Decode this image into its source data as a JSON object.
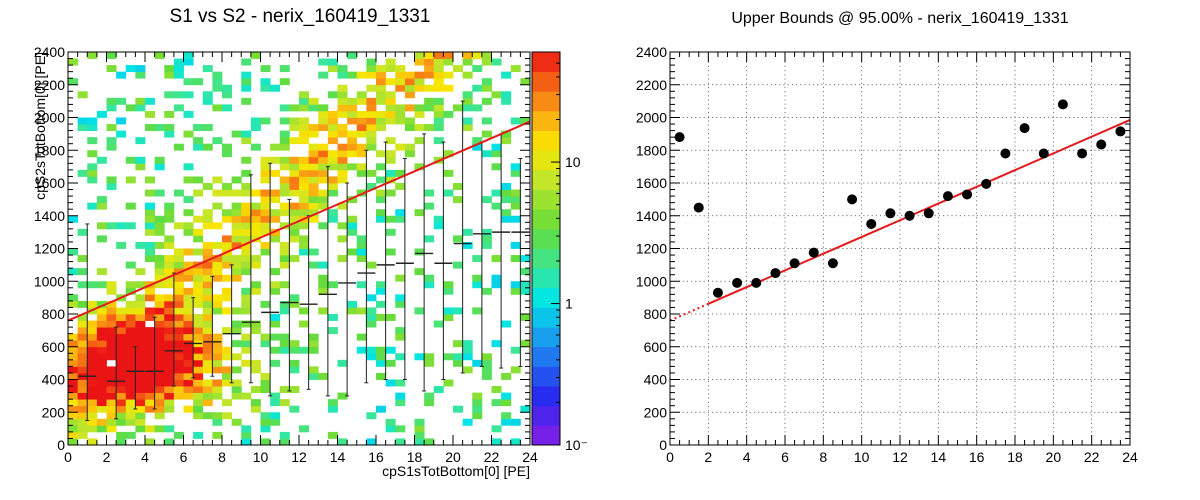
{
  "left_panel": {
    "title": "S1 vs S2 - nerix_160419_1331"
  },
  "right_panel": {
    "title": "Upper Bounds @ 95.00% - nerix_160419_1331"
  },
  "chart_data": [
    {
      "type": "heatmap",
      "title": "S1 vs S2 - nerix_160419_1331",
      "xlabel": "cpS1sTotBottom[0] [PE]",
      "ylabel": "cpS2sTotBottom[0] [PE]",
      "xlim": [
        0,
        24
      ],
      "ylim": [
        0,
        2400
      ],
      "x_ticks": [
        "0",
        "2",
        "4",
        "6",
        "8",
        "10",
        "12",
        "14",
        "16",
        "18",
        "20",
        "22",
        "24"
      ],
      "y_ticks": [
        "0",
        "200",
        "400",
        "600",
        "800",
        "1000",
        "1200",
        "1400",
        "1600",
        "1800",
        "2000",
        "2200",
        "2400"
      ],
      "colorbar": {
        "scale": "log",
        "range": [
          0.1,
          60
        ],
        "tick_labels": [
          "10⁻",
          "1",
          "10"
        ]
      },
      "grid": false,
      "upper_bound_line": {
        "color": "#e41a1c",
        "x": [
          0,
          24
        ],
        "y": [
          760,
          1975
        ]
      },
      "profile_points": {
        "x": [
          1.0,
          2.5,
          3.5,
          4.5,
          5.5,
          6.5,
          7.5,
          8.5,
          9.5,
          10.5,
          11.5,
          12.5,
          13.5,
          14.5,
          15.5,
          16.5,
          17.5,
          18.5,
          19.5,
          20.5,
          21.5,
          22.5,
          23.5
        ],
        "y": [
          420,
          390,
          450,
          450,
          575,
          620,
          630,
          680,
          750,
          810,
          870,
          860,
          920,
          990,
          1050,
          1100,
          1110,
          1170,
          1110,
          1230,
          1290,
          1300,
          1300
        ],
        "err_low": [
          150,
          160,
          220,
          220,
          360,
          410,
          420,
          380,
          380,
          300,
          330,
          340,
          300,
          300,
          380,
          400,
          400,
          330,
          400,
          440,
          480,
          470,
          480
        ],
        "err_high": [
          1350,
          720,
          600,
          780,
          1050,
          900,
          1030,
          1100,
          1650,
          1720,
          1500,
          1400,
          1700,
          1600,
          1800,
          1850,
          1750,
          1900,
          1850,
          2100,
          1850,
          1900,
          1750
        ]
      }
    },
    {
      "type": "scatter",
      "title": "Upper Bounds @ 95.00% - nerix_160419_1331",
      "xlabel": "",
      "ylabel": "",
      "xlim": [
        0,
        24
      ],
      "ylim": [
        0,
        2400
      ],
      "x_ticks": [
        "0",
        "2",
        "4",
        "6",
        "8",
        "10",
        "12",
        "14",
        "16",
        "18",
        "20",
        "22",
        "24"
      ],
      "y_ticks": [
        "0",
        "200",
        "400",
        "600",
        "800",
        "1000",
        "1200",
        "1400",
        "1600",
        "1800",
        "2000",
        "2200",
        "2400"
      ],
      "grid": true,
      "series": [
        {
          "x": [
            0.5,
            1.5,
            2.5,
            3.5,
            4.5,
            5.5,
            6.5,
            7.5,
            8.5,
            9.5,
            10.5,
            11.5,
            12.5,
            13.5,
            14.5,
            15.5,
            16.5,
            17.5,
            18.5,
            19.5,
            20.5,
            21.5,
            22.5,
            23.5
          ],
          "y": [
            1880,
            1450,
            930,
            990,
            990,
            1050,
            1110,
            1175,
            1110,
            1500,
            1350,
            1415,
            1400,
            1415,
            1520,
            1530,
            1595,
            1780,
            1935,
            1780,
            2080,
            1780,
            1835,
            1915
          ]
        }
      ],
      "fit_line": {
        "color": "#e41a1c",
        "x": [
          0,
          24
        ],
        "y": [
          760,
          1985
        ],
        "dotted_until_x": 2.0
      }
    }
  ]
}
